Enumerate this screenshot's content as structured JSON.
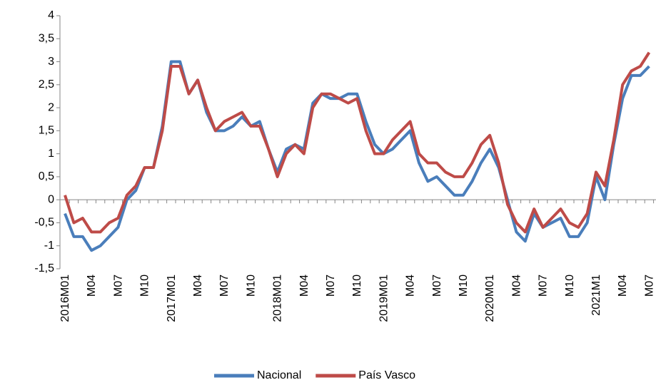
{
  "chart_data": {
    "type": "line",
    "categories": [
      "2016M01",
      null,
      null,
      "M04",
      null,
      null,
      "M07",
      null,
      null,
      "M10",
      null,
      null,
      "2017M01",
      null,
      null,
      "M04",
      null,
      null,
      "M07",
      null,
      null,
      "M10",
      null,
      null,
      "2018M01",
      null,
      null,
      "M04",
      null,
      null,
      "M07",
      null,
      null,
      "M10",
      null,
      null,
      "2019M01",
      null,
      null,
      "M04",
      null,
      null,
      "M07",
      null,
      null,
      "M10",
      null,
      null,
      "2020M01",
      null,
      null,
      "M04",
      null,
      null,
      "M07",
      null,
      null,
      "M10",
      null,
      null,
      "2021M1",
      null,
      null,
      "M04",
      null,
      null,
      "M07"
    ],
    "series": [
      {
        "name": "Nacional",
        "color": "#4a7ebb",
        "values": [
          -0.3,
          -0.8,
          -0.8,
          -1.1,
          -1.0,
          -0.8,
          -0.6,
          0.0,
          0.2,
          0.7,
          0.7,
          1.6,
          3.0,
          3.0,
          2.3,
          2.6,
          1.9,
          1.5,
          1.5,
          1.6,
          1.8,
          1.6,
          1.7,
          1.1,
          0.6,
          1.1,
          1.2,
          1.1,
          2.1,
          2.3,
          2.2,
          2.2,
          2.3,
          2.3,
          1.7,
          1.2,
          1.0,
          1.1,
          1.3,
          1.5,
          0.8,
          0.4,
          0.5,
          0.3,
          0.1,
          0.1,
          0.4,
          0.8,
          1.1,
          0.7,
          0.0,
          -0.7,
          -0.9,
          -0.3,
          -0.6,
          -0.5,
          -0.4,
          -0.8,
          -0.8,
          -0.5,
          0.5,
          0.0,
          1.2,
          2.2,
          2.7,
          2.7,
          2.9
        ]
      },
      {
        "name": "País Vasco",
        "color": "#be4b48",
        "values": [
          0.1,
          -0.5,
          -0.4,
          -0.7,
          -0.7,
          -0.5,
          -0.4,
          0.1,
          0.3,
          0.7,
          0.7,
          1.5,
          2.9,
          2.9,
          2.3,
          2.6,
          2.0,
          1.5,
          1.7,
          1.8,
          1.9,
          1.6,
          1.6,
          1.1,
          0.5,
          1.0,
          1.2,
          1.0,
          2.0,
          2.3,
          2.3,
          2.2,
          2.1,
          2.2,
          1.5,
          1.0,
          1.0,
          1.3,
          1.5,
          1.7,
          1.0,
          0.8,
          0.8,
          0.6,
          0.5,
          0.5,
          0.8,
          1.2,
          1.4,
          0.8,
          -0.1,
          -0.5,
          -0.7,
          -0.2,
          -0.6,
          -0.4,
          -0.2,
          -0.5,
          -0.6,
          -0.3,
          0.6,
          0.3,
          1.3,
          2.5,
          2.8,
          2.9,
          3.2
        ]
      }
    ],
    "ylim": [
      -1.5,
      4
    ],
    "yticks": [
      {
        "value": -1.5,
        "label": "-1,5"
      },
      -1,
      {
        "value": -0.5,
        "label": "-0,5"
      },
      0,
      {
        "value": 0.5,
        "label": "0,5"
      },
      1,
      {
        "value": 1.5,
        "label": "1,5"
      },
      2,
      {
        "value": 2.5,
        "label": "2,5"
      },
      3,
      {
        "value": 3.5,
        "label": "3,5"
      },
      4
    ],
    "legend": "bottom"
  }
}
